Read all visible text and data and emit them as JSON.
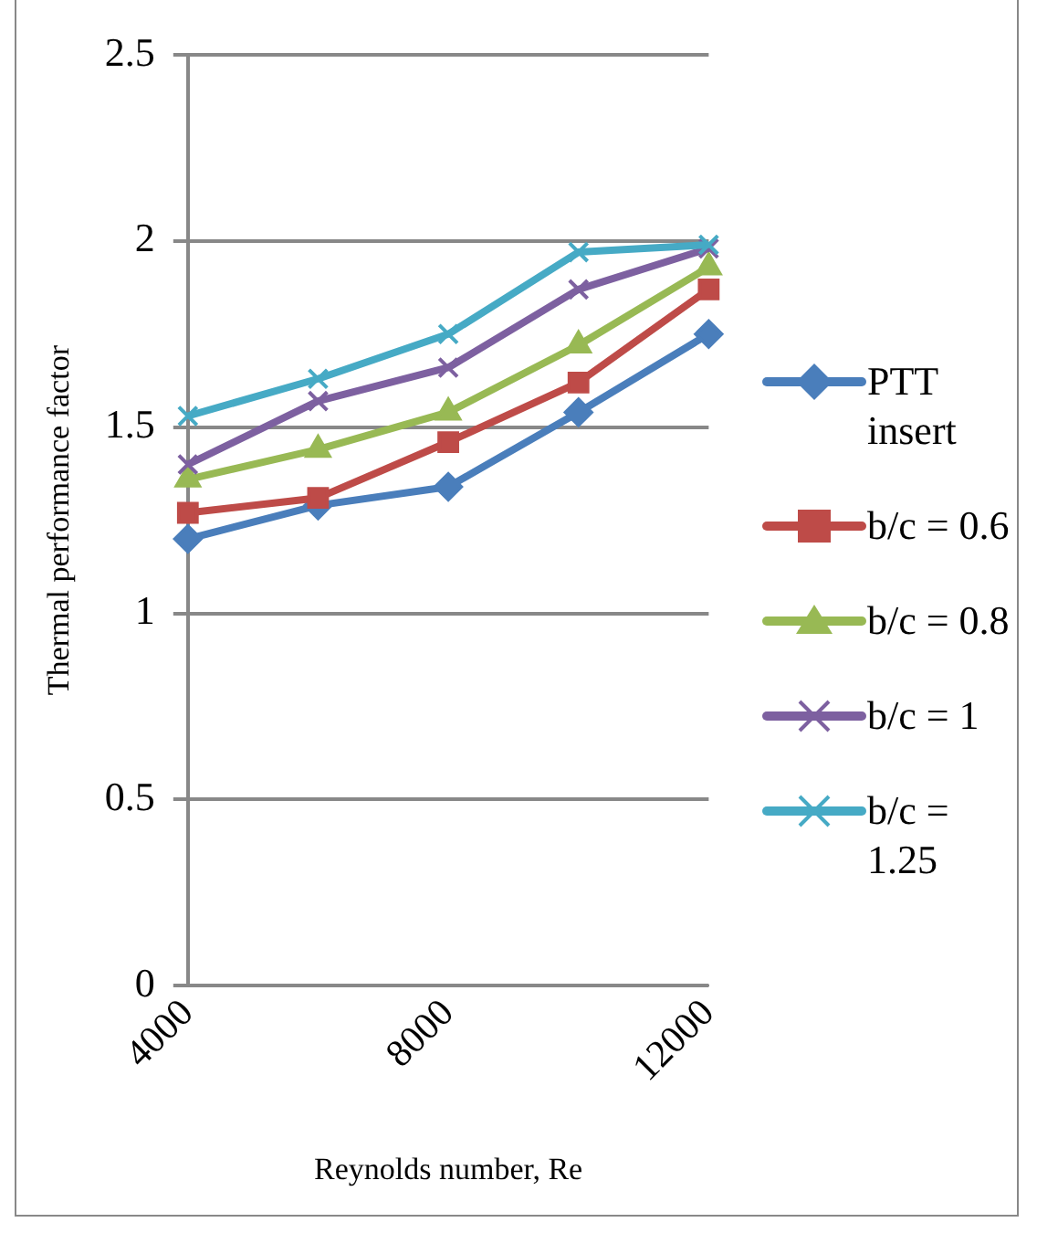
{
  "chart_data": {
    "type": "line",
    "xlabel": "Reynolds number, Re",
    "ylabel": "Thermal performance factor",
    "categories": [
      "4000",
      null,
      "8000",
      null,
      "12000"
    ],
    "ylim": [
      0,
      2.5
    ],
    "yticks": [
      0,
      0.5,
      1,
      1.5,
      2,
      2.5
    ],
    "grid": "y",
    "legend": "right",
    "line_style": "solid",
    "series": [
      {
        "name": "PTT insert",
        "color": "#4a7ebb",
        "marker": "diamond",
        "values": [
          1.2,
          1.29,
          1.34,
          1.54,
          1.75
        ]
      },
      {
        "name": "b/c = 0.6",
        "color": "#be4b48",
        "marker": "square",
        "values": [
          1.27,
          1.31,
          1.46,
          1.62,
          1.87
        ]
      },
      {
        "name": "b/c = 0.8",
        "color": "#98b954",
        "marker": "triangle",
        "values": [
          1.36,
          1.44,
          1.54,
          1.72,
          1.93
        ]
      },
      {
        "name": "b/c = 1",
        "color": "#7d60a0",
        "marker": "cross",
        "values": [
          1.4,
          1.57,
          1.66,
          1.87,
          1.98
        ]
      },
      {
        "name": "b/c = 1.25",
        "color": "#46aac5",
        "marker": "cross",
        "values": [
          1.53,
          1.63,
          1.75,
          1.97,
          1.99
        ]
      }
    ]
  }
}
